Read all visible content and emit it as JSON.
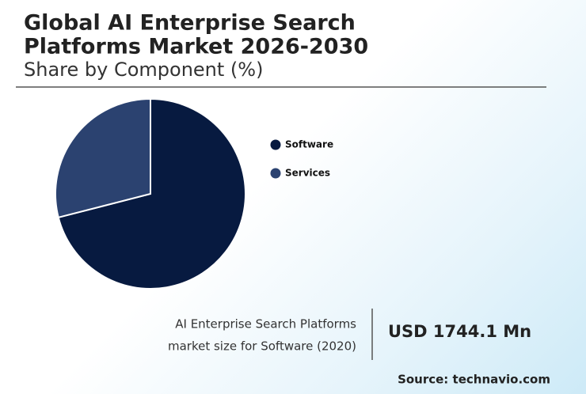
{
  "chart_data": {
    "type": "pie",
    "title_lines": [
      "Global AI Enterprise Search",
      "Platforms Market 2026-2030"
    ],
    "subtitle": "Share by Component (%)",
    "categories": [
      "Software",
      "Services"
    ],
    "values": [
      71,
      29
    ],
    "colors": [
      "#071a40",
      "#2b4270"
    ]
  },
  "info": {
    "description_lines": [
      "AI Enterprise Search Platforms",
      "market size for Software (2020)"
    ],
    "value": "USD 1744.1 Mn",
    "source": "Source: technavio.com"
  }
}
